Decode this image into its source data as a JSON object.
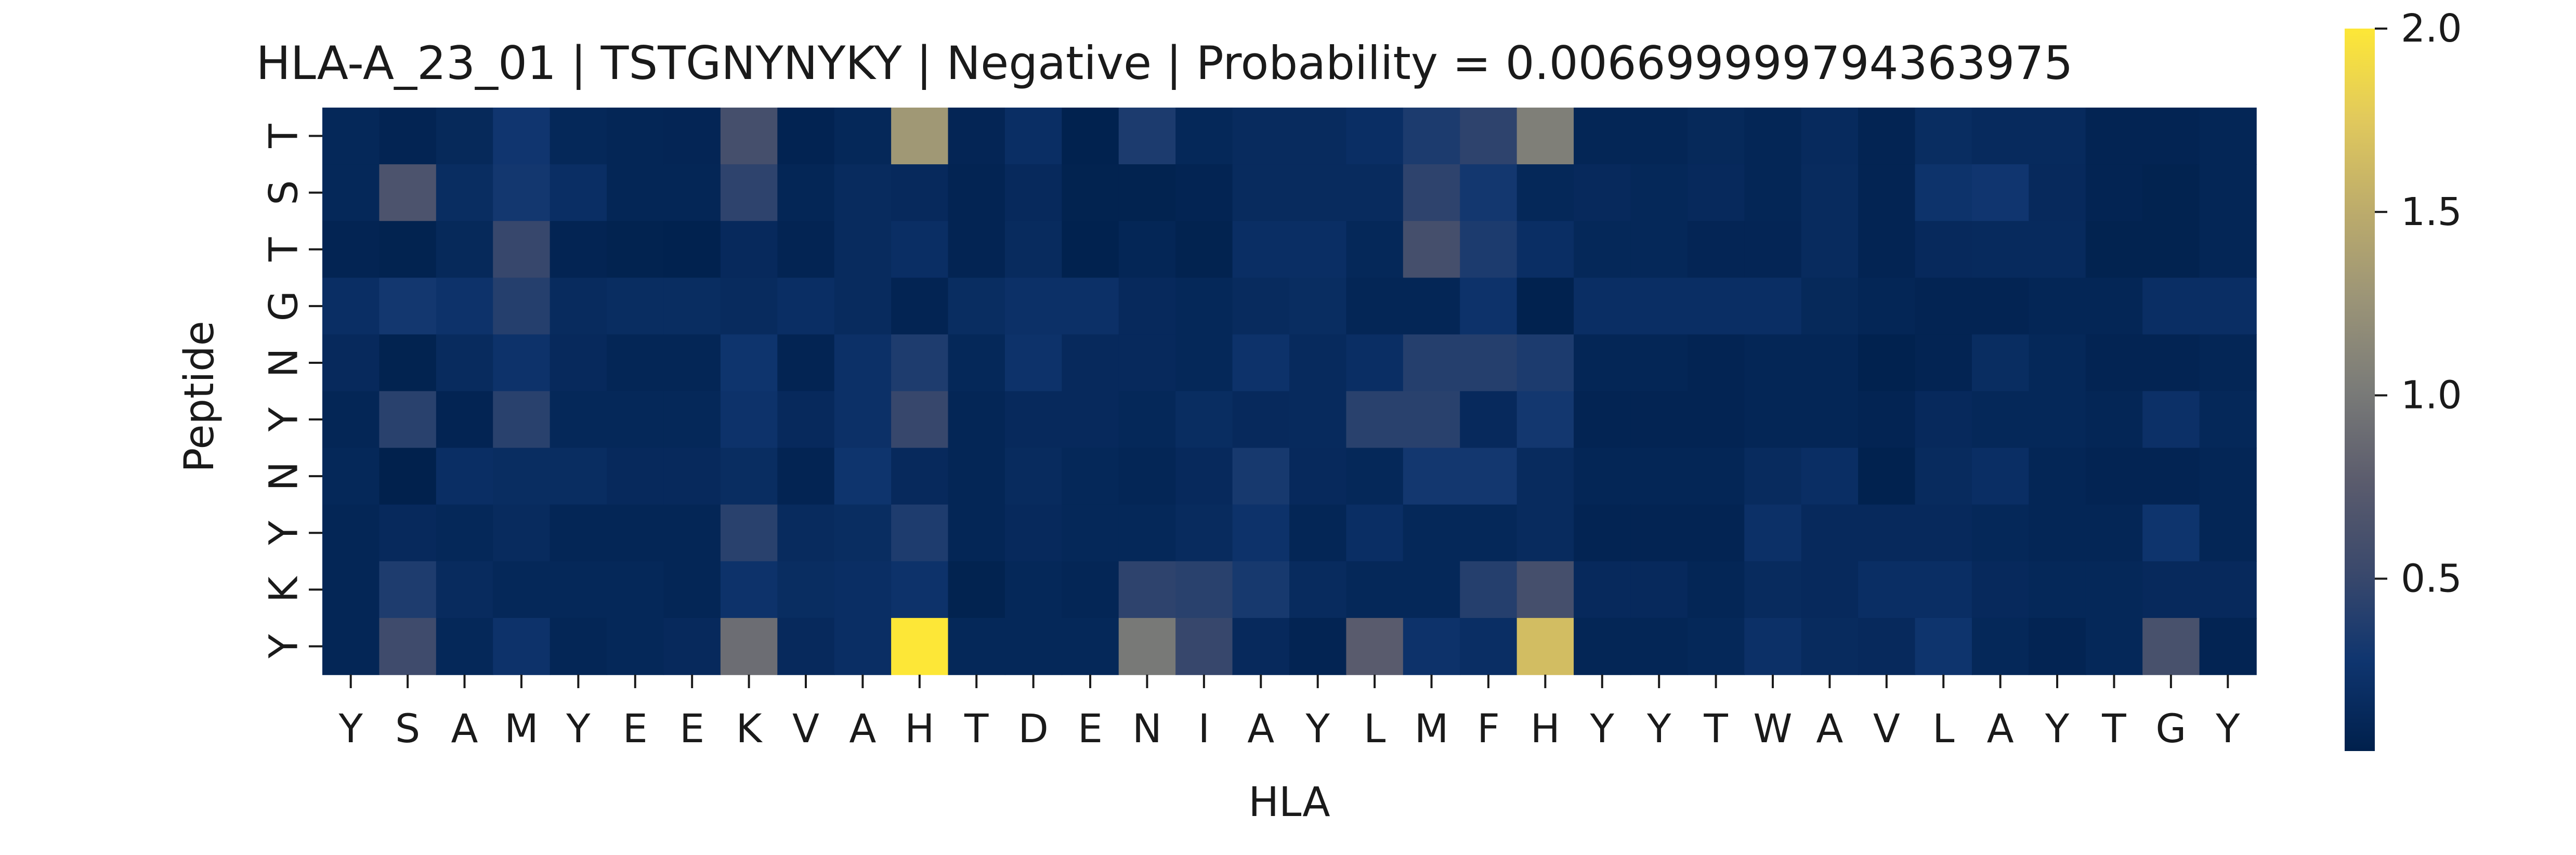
{
  "chart_data": {
    "type": "heatmap",
    "title": "HLA-A_23_01 | TSTGNYNYKY | Negative | Probability = 0.006699999794363975",
    "xlabel": "HLA",
    "ylabel": "Peptide",
    "x_categories": [
      "Y",
      "S",
      "A",
      "M",
      "Y",
      "E",
      "E",
      "K",
      "V",
      "A",
      "H",
      "T",
      "D",
      "E",
      "N",
      "I",
      "A",
      "Y",
      "L",
      "M",
      "F",
      "H",
      "Y",
      "Y",
      "T",
      "W",
      "A",
      "V",
      "L",
      "A",
      "Y",
      "T",
      "G",
      "Y"
    ],
    "y_categories": [
      "T",
      "S",
      "T",
      "G",
      "N",
      "Y",
      "N",
      "Y",
      "K",
      "Y"
    ],
    "colormap": "cividis",
    "color_range": [
      0.03,
      2.0
    ],
    "colorbar_ticks": [
      0.5,
      1.0,
      1.5,
      2.0
    ],
    "colorbar_tick_labels": [
      "0.5",
      "1.0",
      "1.5",
      "2.0"
    ],
    "values": [
      [
        0.12,
        0.08,
        0.13,
        0.28,
        0.12,
        0.1,
        0.09,
        0.6,
        0.07,
        0.12,
        1.3,
        0.09,
        0.2,
        0.05,
        0.35,
        0.12,
        0.16,
        0.16,
        0.2,
        0.35,
        0.45,
        1.05,
        0.1,
        0.1,
        0.13,
        0.1,
        0.15,
        0.08,
        0.18,
        0.15,
        0.15,
        0.08,
        0.08,
        0.1
      ],
      [
        0.12,
        0.65,
        0.18,
        0.3,
        0.2,
        0.1,
        0.1,
        0.45,
        0.1,
        0.16,
        0.14,
        0.08,
        0.14,
        0.06,
        0.06,
        0.08,
        0.16,
        0.16,
        0.16,
        0.45,
        0.3,
        0.12,
        0.14,
        0.12,
        0.14,
        0.1,
        0.16,
        0.08,
        0.25,
        0.28,
        0.14,
        0.08,
        0.06,
        0.1
      ],
      [
        0.08,
        0.06,
        0.13,
        0.5,
        0.08,
        0.06,
        0.05,
        0.14,
        0.08,
        0.16,
        0.2,
        0.08,
        0.16,
        0.05,
        0.1,
        0.06,
        0.2,
        0.2,
        0.12,
        0.6,
        0.35,
        0.2,
        0.12,
        0.12,
        0.09,
        0.09,
        0.16,
        0.08,
        0.14,
        0.15,
        0.15,
        0.06,
        0.06,
        0.1
      ],
      [
        0.2,
        0.3,
        0.24,
        0.4,
        0.16,
        0.18,
        0.18,
        0.16,
        0.2,
        0.16,
        0.08,
        0.18,
        0.22,
        0.22,
        0.14,
        0.12,
        0.16,
        0.18,
        0.1,
        0.1,
        0.24,
        0.05,
        0.2,
        0.2,
        0.2,
        0.2,
        0.13,
        0.1,
        0.08,
        0.08,
        0.1,
        0.1,
        0.2,
        0.2
      ],
      [
        0.14,
        0.06,
        0.16,
        0.24,
        0.14,
        0.1,
        0.1,
        0.26,
        0.08,
        0.22,
        0.36,
        0.12,
        0.24,
        0.14,
        0.14,
        0.12,
        0.24,
        0.15,
        0.2,
        0.4,
        0.4,
        0.35,
        0.1,
        0.1,
        0.08,
        0.1,
        0.1,
        0.05,
        0.08,
        0.18,
        0.12,
        0.08,
        0.08,
        0.1
      ],
      [
        0.1,
        0.42,
        0.08,
        0.42,
        0.12,
        0.12,
        0.12,
        0.24,
        0.14,
        0.22,
        0.5,
        0.1,
        0.14,
        0.14,
        0.12,
        0.18,
        0.14,
        0.15,
        0.42,
        0.42,
        0.14,
        0.3,
        0.08,
        0.08,
        0.08,
        0.1,
        0.1,
        0.08,
        0.14,
        0.12,
        0.12,
        0.1,
        0.22,
        0.12
      ],
      [
        0.12,
        0.04,
        0.2,
        0.18,
        0.18,
        0.14,
        0.14,
        0.18,
        0.08,
        0.26,
        0.14,
        0.1,
        0.16,
        0.12,
        0.1,
        0.14,
        0.32,
        0.14,
        0.12,
        0.3,
        0.3,
        0.16,
        0.1,
        0.1,
        0.1,
        0.16,
        0.2,
        0.05,
        0.16,
        0.2,
        0.1,
        0.08,
        0.08,
        0.1
      ],
      [
        0.1,
        0.14,
        0.12,
        0.16,
        0.1,
        0.1,
        0.1,
        0.42,
        0.16,
        0.18,
        0.36,
        0.1,
        0.14,
        0.12,
        0.12,
        0.16,
        0.24,
        0.1,
        0.2,
        0.12,
        0.12,
        0.16,
        0.08,
        0.08,
        0.08,
        0.22,
        0.14,
        0.14,
        0.14,
        0.12,
        0.1,
        0.1,
        0.26,
        0.1
      ],
      [
        0.1,
        0.36,
        0.16,
        0.12,
        0.12,
        0.12,
        0.1,
        0.24,
        0.18,
        0.2,
        0.24,
        0.06,
        0.12,
        0.1,
        0.45,
        0.42,
        0.32,
        0.16,
        0.12,
        0.12,
        0.4,
        0.6,
        0.14,
        0.14,
        0.1,
        0.16,
        0.14,
        0.2,
        0.2,
        0.14,
        0.12,
        0.12,
        0.14,
        0.14
      ],
      [
        0.1,
        0.55,
        0.12,
        0.24,
        0.1,
        0.12,
        0.14,
        0.9,
        0.14,
        0.2,
        2.0,
        0.12,
        0.12,
        0.12,
        1.0,
        0.5,
        0.14,
        0.08,
        0.75,
        0.24,
        0.2,
        1.65,
        0.1,
        0.1,
        0.12,
        0.22,
        0.16,
        0.14,
        0.26,
        0.12,
        0.08,
        0.12,
        0.62,
        0.08
      ]
    ]
  }
}
